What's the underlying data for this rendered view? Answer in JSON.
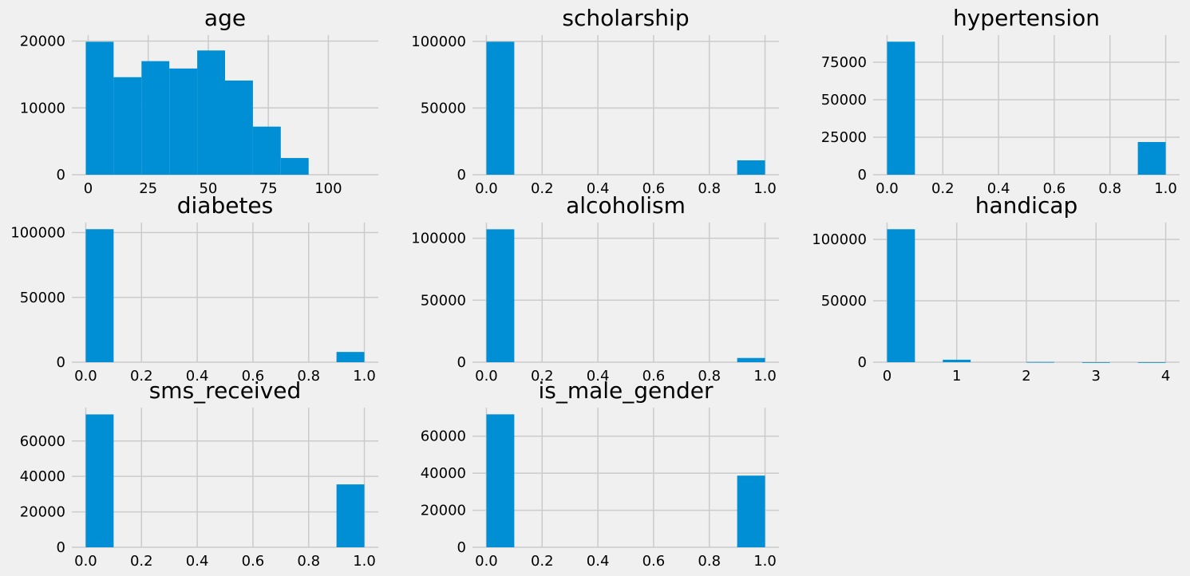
{
  "colors": {
    "bar": "#008fd5",
    "grid": "#cbcbcb",
    "background": "#f0f0f0"
  },
  "chart_data": [
    {
      "type": "bar",
      "title": "age",
      "xlabel": "",
      "ylabel": "",
      "grid": true,
      "bins": [
        [
          -1,
          10.6
        ],
        [
          10.6,
          22.2
        ],
        [
          22.2,
          33.8
        ],
        [
          33.8,
          45.4
        ],
        [
          45.4,
          57
        ],
        [
          57,
          68.6
        ],
        [
          68.6,
          80.2
        ],
        [
          80.2,
          91.8
        ],
        [
          91.8,
          103.4
        ],
        [
          103.4,
          115
        ]
      ],
      "values": [
        19900,
        14600,
        17000,
        15900,
        18600,
        14100,
        7200,
        2500,
        0,
        0
      ],
      "xlim": [
        -6.8,
        120.8
      ],
      "ylim": [
        0,
        20900
      ],
      "xticks": [
        0,
        25,
        50,
        75,
        100
      ],
      "xtick_labels": [
        "0",
        "25",
        "50",
        "75",
        "100"
      ],
      "yticks": [
        0,
        10000,
        20000
      ],
      "ytick_labels": [
        "0",
        "10000",
        "20000"
      ]
    },
    {
      "type": "bar",
      "title": "scholarship",
      "xlabel": "",
      "ylabel": "",
      "grid": true,
      "bins": [
        [
          0,
          0.1
        ],
        [
          0.1,
          0.2
        ],
        [
          0.2,
          0.3
        ],
        [
          0.3,
          0.4
        ],
        [
          0.4,
          0.5
        ],
        [
          0.5,
          0.6
        ],
        [
          0.6,
          0.7
        ],
        [
          0.7,
          0.8
        ],
        [
          0.8,
          0.9
        ],
        [
          0.9,
          1.0
        ]
      ],
      "values": [
        99700,
        0,
        0,
        0,
        0,
        0,
        0,
        0,
        0,
        10800
      ],
      "xlim": [
        -0.05,
        1.05
      ],
      "ylim": [
        0,
        104700
      ],
      "xticks": [
        0,
        0.2,
        0.4,
        0.6,
        0.8,
        1.0
      ],
      "xtick_labels": [
        "0.0",
        "0.2",
        "0.4",
        "0.6",
        "0.8",
        "1.0"
      ],
      "yticks": [
        0,
        50000,
        100000
      ],
      "ytick_labels": [
        "0",
        "50000",
        "100000"
      ]
    },
    {
      "type": "bar",
      "title": "hypertension",
      "xlabel": "",
      "ylabel": "",
      "grid": true,
      "bins": [
        [
          0,
          0.1
        ],
        [
          0.1,
          0.2
        ],
        [
          0.2,
          0.3
        ],
        [
          0.3,
          0.4
        ],
        [
          0.4,
          0.5
        ],
        [
          0.5,
          0.6
        ],
        [
          0.6,
          0.7
        ],
        [
          0.7,
          0.8
        ],
        [
          0.8,
          0.9
        ],
        [
          0.9,
          1.0
        ]
      ],
      "values": [
        88700,
        0,
        0,
        0,
        0,
        0,
        0,
        0,
        0,
        21800
      ],
      "xlim": [
        -0.05,
        1.05
      ],
      "ylim": [
        0,
        93100
      ],
      "xticks": [
        0,
        0.2,
        0.4,
        0.6,
        0.8,
        1.0
      ],
      "xtick_labels": [
        "0.0",
        "0.2",
        "0.4",
        "0.6",
        "0.8",
        "1.0"
      ],
      "yticks": [
        0,
        25000,
        50000,
        75000
      ],
      "ytick_labels": [
        "0",
        "25000",
        "50000",
        "75000"
      ]
    },
    {
      "type": "bar",
      "title": "diabetes",
      "xlabel": "",
      "ylabel": "",
      "grid": true,
      "bins": [
        [
          0,
          0.1
        ],
        [
          0.1,
          0.2
        ],
        [
          0.2,
          0.3
        ],
        [
          0.3,
          0.4
        ],
        [
          0.4,
          0.5
        ],
        [
          0.5,
          0.6
        ],
        [
          0.6,
          0.7
        ],
        [
          0.7,
          0.8
        ],
        [
          0.8,
          0.9
        ],
        [
          0.9,
          1.0
        ]
      ],
      "values": [
        102600,
        0,
        0,
        0,
        0,
        0,
        0,
        0,
        0,
        7900
      ],
      "xlim": [
        -0.05,
        1.05
      ],
      "ylim": [
        0,
        107700
      ],
      "xticks": [
        0,
        0.2,
        0.4,
        0.6,
        0.8,
        1.0
      ],
      "xtick_labels": [
        "0.0",
        "0.2",
        "0.4",
        "0.6",
        "0.8",
        "1.0"
      ],
      "yticks": [
        0,
        50000,
        100000
      ],
      "ytick_labels": [
        "0",
        "50000",
        "100000"
      ]
    },
    {
      "type": "bar",
      "title": "alcoholism",
      "xlabel": "",
      "ylabel": "",
      "grid": true,
      "bins": [
        [
          0,
          0.1
        ],
        [
          0.1,
          0.2
        ],
        [
          0.2,
          0.3
        ],
        [
          0.3,
          0.4
        ],
        [
          0.4,
          0.5
        ],
        [
          0.5,
          0.6
        ],
        [
          0.6,
          0.7
        ],
        [
          0.7,
          0.8
        ],
        [
          0.8,
          0.9
        ],
        [
          0.9,
          1.0
        ]
      ],
      "values": [
        107200,
        0,
        0,
        0,
        0,
        0,
        0,
        0,
        0,
        3400
      ],
      "xlim": [
        -0.05,
        1.05
      ],
      "ylim": [
        0,
        112600
      ],
      "xticks": [
        0,
        0.2,
        0.4,
        0.6,
        0.8,
        1.0
      ],
      "xtick_labels": [
        "0.0",
        "0.2",
        "0.4",
        "0.6",
        "0.8",
        "1.0"
      ],
      "yticks": [
        0,
        50000,
        100000
      ],
      "ytick_labels": [
        "0",
        "50000",
        "100000"
      ]
    },
    {
      "type": "bar",
      "title": "handicap",
      "xlabel": "",
      "ylabel": "",
      "grid": true,
      "bins": [
        [
          0,
          0.4
        ],
        [
          0.4,
          0.8
        ],
        [
          0.8,
          1.2
        ],
        [
          1.2,
          1.6
        ],
        [
          1.6,
          2.0
        ],
        [
          2.0,
          2.4
        ],
        [
          2.4,
          2.8
        ],
        [
          2.8,
          3.2
        ],
        [
          3.2,
          3.6
        ],
        [
          3.6,
          4.0
        ]
      ],
      "values": [
        108300,
        0,
        2000,
        0,
        0,
        180,
        0,
        13,
        0,
        3
      ],
      "xlim": [
        -0.2,
        4.2
      ],
      "ylim": [
        0,
        113700
      ],
      "xticks": [
        0,
        1,
        2,
        3,
        4
      ],
      "xtick_labels": [
        "0",
        "1",
        "2",
        "3",
        "4"
      ],
      "yticks": [
        0,
        50000,
        100000
      ],
      "ytick_labels": [
        "0",
        "50000",
        "100000"
      ]
    },
    {
      "type": "bar",
      "title": "sms_received",
      "xlabel": "",
      "ylabel": "",
      "grid": true,
      "bins": [
        [
          0,
          0.1
        ],
        [
          0.1,
          0.2
        ],
        [
          0.2,
          0.3
        ],
        [
          0.3,
          0.4
        ],
        [
          0.4,
          0.5
        ],
        [
          0.5,
          0.6
        ],
        [
          0.6,
          0.7
        ],
        [
          0.7,
          0.8
        ],
        [
          0.8,
          0.9
        ],
        [
          0.9,
          1.0
        ]
      ],
      "values": [
        75000,
        0,
        0,
        0,
        0,
        0,
        0,
        0,
        0,
        35500
      ],
      "xlim": [
        -0.05,
        1.05
      ],
      "ylim": [
        0,
        78800
      ],
      "xticks": [
        0,
        0.2,
        0.4,
        0.6,
        0.8,
        1.0
      ],
      "xtick_labels": [
        "0.0",
        "0.2",
        "0.4",
        "0.6",
        "0.8",
        "1.0"
      ],
      "yticks": [
        0,
        20000,
        40000,
        60000
      ],
      "ytick_labels": [
        "0",
        "20000",
        "40000",
        "60000"
      ]
    },
    {
      "type": "bar",
      "title": "is_male_gender",
      "xlabel": "",
      "ylabel": "",
      "grid": true,
      "bins": [
        [
          0,
          0.1
        ],
        [
          0.1,
          0.2
        ],
        [
          0.2,
          0.3
        ],
        [
          0.3,
          0.4
        ],
        [
          0.4,
          0.5
        ],
        [
          0.5,
          0.6
        ],
        [
          0.6,
          0.7
        ],
        [
          0.7,
          0.8
        ],
        [
          0.8,
          0.9
        ],
        [
          0.9,
          1.0
        ]
      ],
      "values": [
        71800,
        0,
        0,
        0,
        0,
        0,
        0,
        0,
        0,
        38700
      ],
      "xlim": [
        -0.05,
        1.05
      ],
      "ylim": [
        0,
        75400
      ],
      "xticks": [
        0,
        0.2,
        0.4,
        0.6,
        0.8,
        1.0
      ],
      "xtick_labels": [
        "0.0",
        "0.2",
        "0.4",
        "0.6",
        "0.8",
        "1.0"
      ],
      "yticks": [
        0,
        20000,
        40000,
        60000
      ],
      "ytick_labels": [
        "0",
        "20000",
        "40000",
        "60000"
      ]
    }
  ]
}
